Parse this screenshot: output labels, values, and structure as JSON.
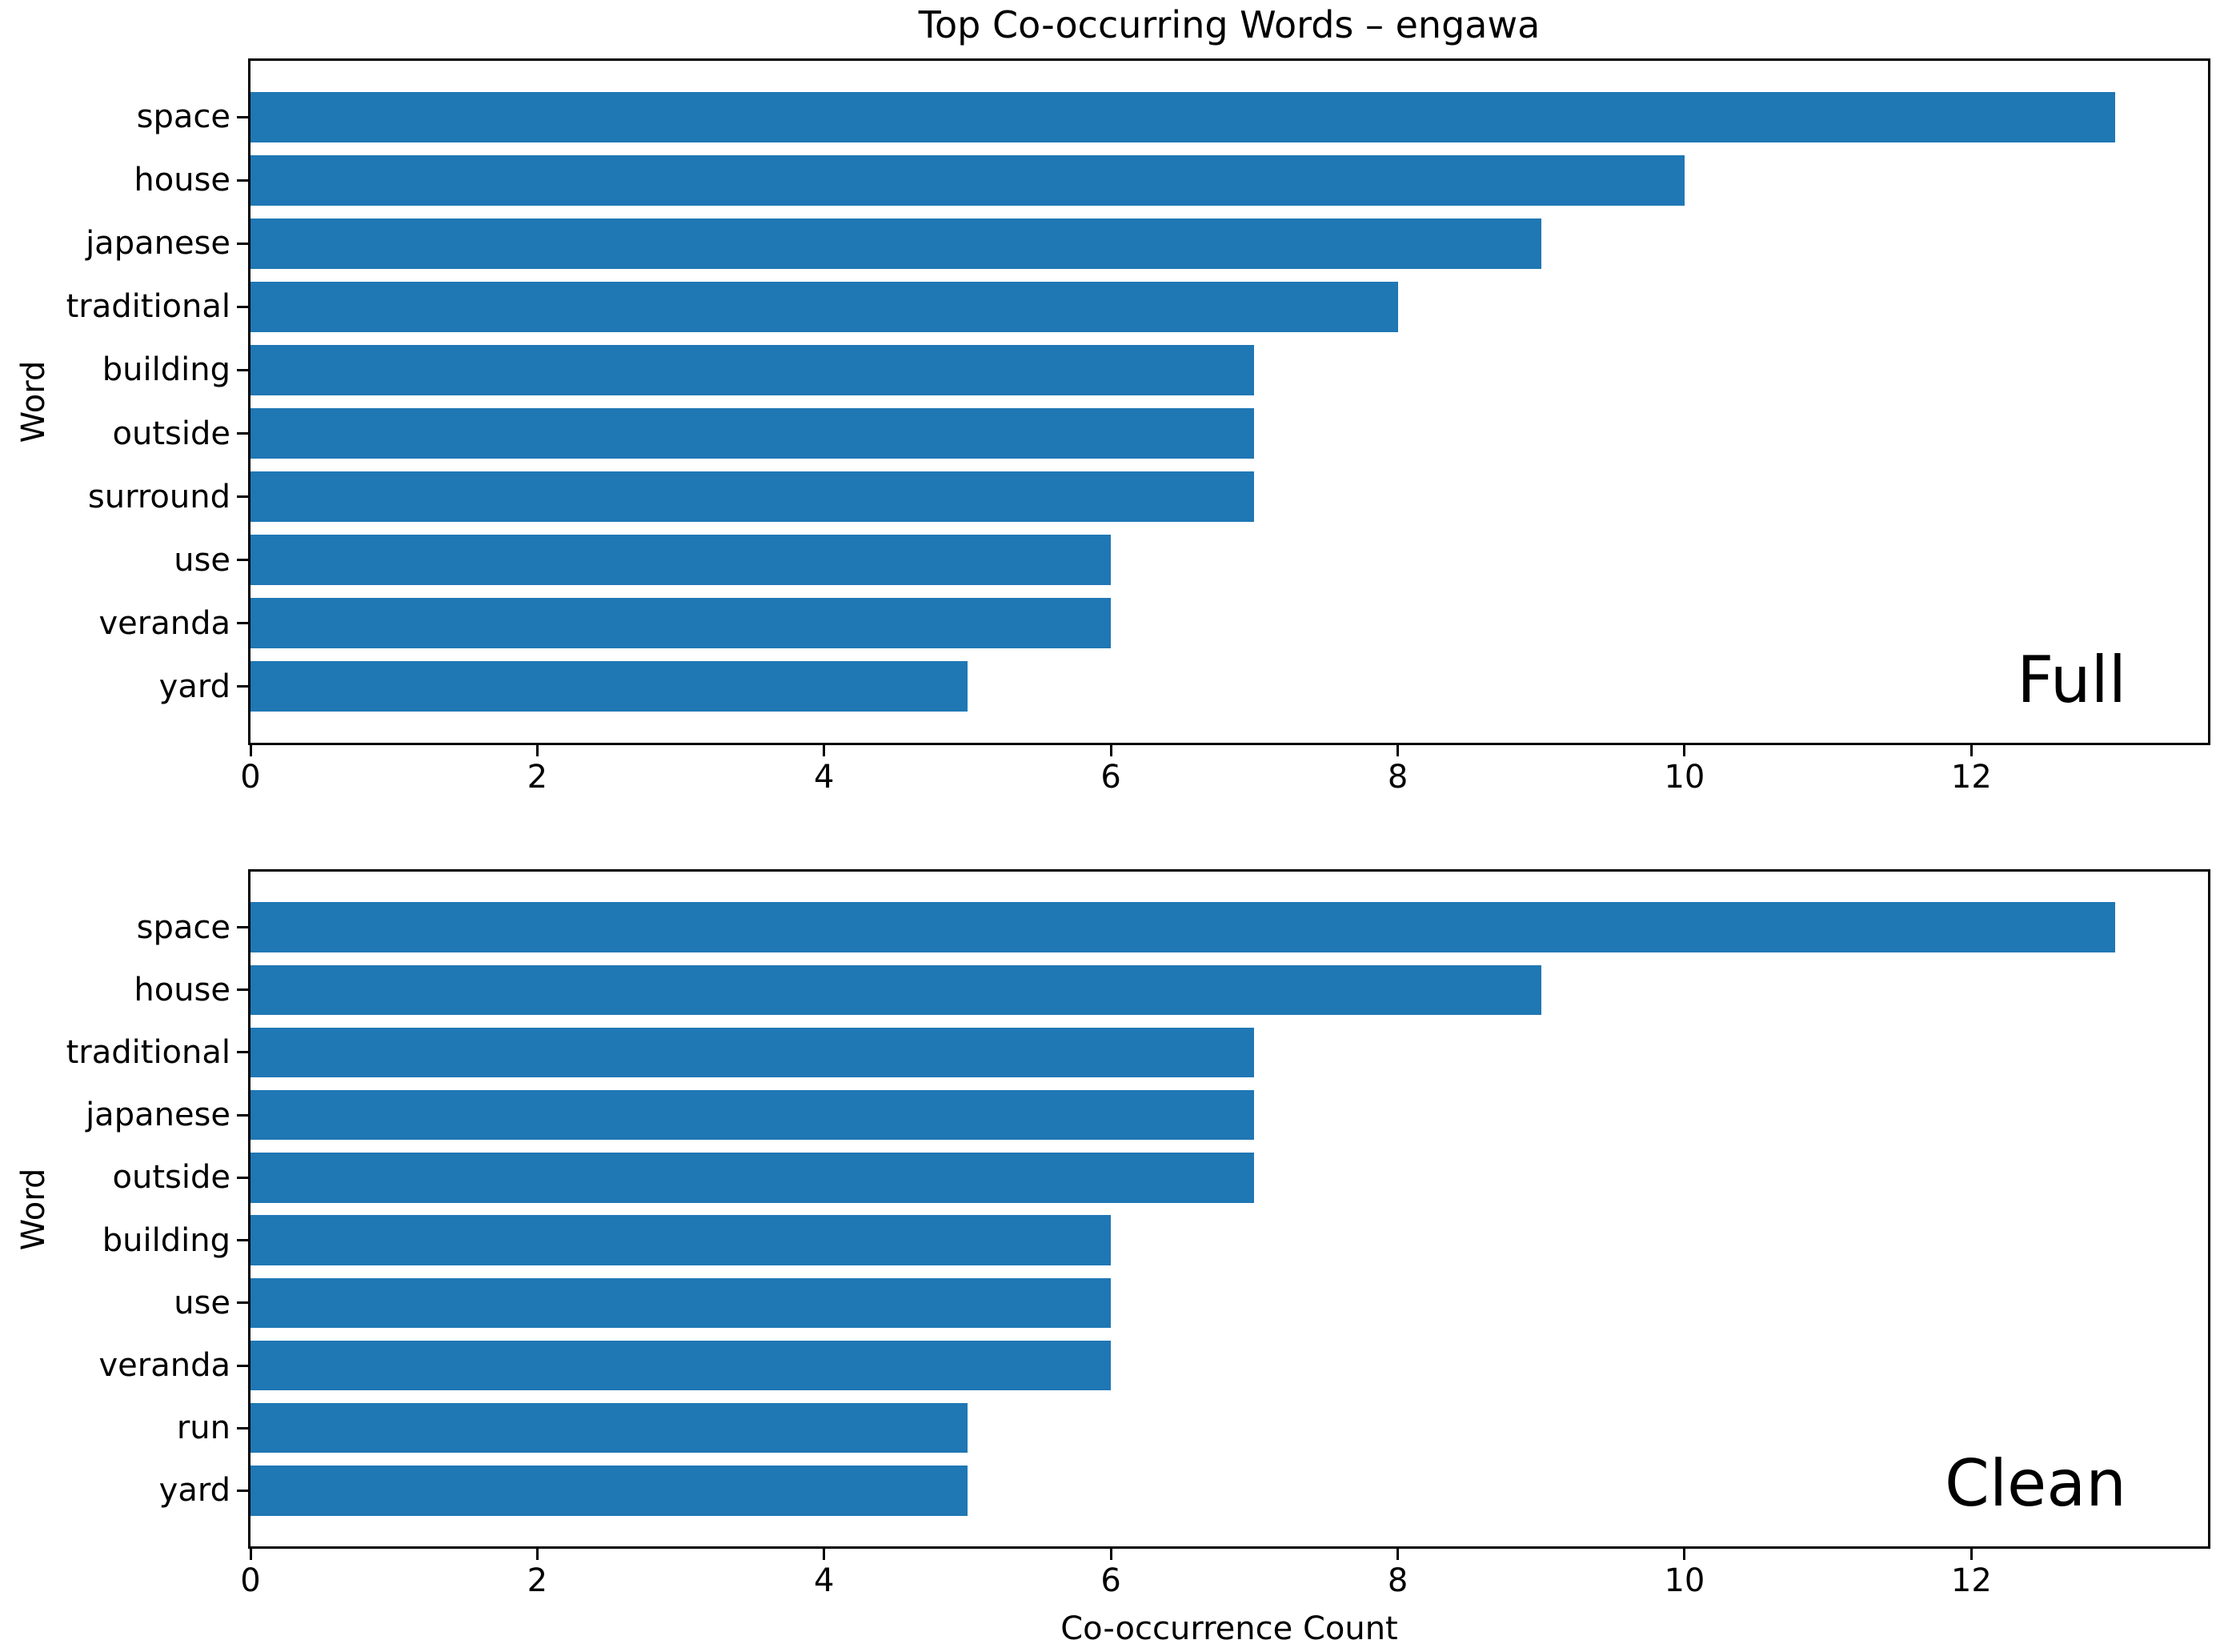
{
  "title": "Top Co-occurring Words – engawa",
  "colors": {
    "bar": "#1f77b4",
    "axis": "#000000",
    "text": "#000000",
    "background": "#ffffff"
  },
  "chart_data": [
    {
      "type": "bar",
      "orientation": "horizontal",
      "panel_label": "Full",
      "categories": [
        "space",
        "house",
        "japanese",
        "traditional",
        "building",
        "outside",
        "surround",
        "use",
        "veranda",
        "yard"
      ],
      "values": [
        13,
        10,
        9,
        8,
        7,
        7,
        7,
        6,
        6,
        5
      ],
      "ylabel": "Word",
      "xlabel": "",
      "xlim": [
        0,
        13.65
      ],
      "xticks": [
        0,
        2,
        4,
        6,
        8,
        10,
        12
      ],
      "grid": false,
      "legend_position": "none"
    },
    {
      "type": "bar",
      "orientation": "horizontal",
      "panel_label": "Clean",
      "categories": [
        "space",
        "house",
        "traditional",
        "japanese",
        "outside",
        "building",
        "use",
        "veranda",
        "run",
        "yard"
      ],
      "values": [
        13,
        9,
        7,
        7,
        7,
        6,
        6,
        6,
        5,
        5
      ],
      "ylabel": "Word",
      "xlabel": "Co-occurrence Count",
      "xlim": [
        0,
        13.65
      ],
      "xticks": [
        0,
        2,
        4,
        6,
        8,
        10,
        12
      ],
      "grid": false,
      "legend_position": "none"
    }
  ]
}
